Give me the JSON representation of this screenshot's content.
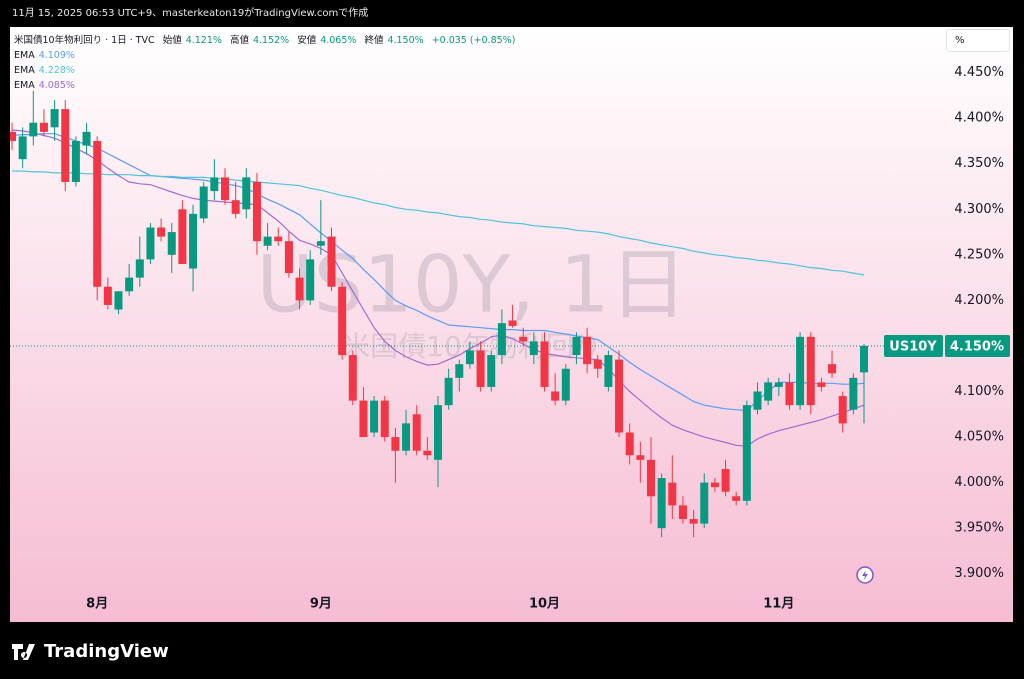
{
  "header": {
    "created": "11月 15, 2025 06:53 UTC+9、masterkeaton19がTradingView.comで作成"
  },
  "footer": {
    "logo": "TradingView"
  },
  "chart_data": {
    "type": "candlestick",
    "title": "米国債10年物利回り · 1日 · TVC",
    "ohlc_legend": [
      {
        "label": "始値",
        "value": "4.121%"
      },
      {
        "label": "高値",
        "value": "4.152%"
      },
      {
        "label": "安値",
        "value": "4.065%"
      },
      {
        "label": "終値",
        "value": "4.150%"
      }
    ],
    "change": "+0.035 (+0.85%)",
    "watermark": "US10Y, 1日",
    "watermark_subtitle": "米国債10年物利回り",
    "symbol": "US10Y",
    "last_price": {
      "value": 4.15,
      "label": "4.150%"
    },
    "axis_unit": "%",
    "up_color": "#089981",
    "down_color": "#f23645",
    "grid": false,
    "categories": [
      null,
      null,
      null,
      null,
      null,
      null,
      null,
      null,
      "8月",
      null,
      null,
      null,
      null,
      null,
      null,
      null,
      null,
      null,
      null,
      null,
      null,
      null,
      null,
      null,
      null,
      null,
      null,
      null,
      null,
      "9月",
      null,
      null,
      null,
      null,
      null,
      null,
      null,
      null,
      null,
      null,
      null,
      null,
      null,
      null,
      null,
      null,
      null,
      null,
      null,
      null,
      "10月",
      null,
      null,
      null,
      null,
      null,
      null,
      null,
      null,
      null,
      null,
      null,
      null,
      null,
      null,
      null,
      null,
      null,
      null,
      null,
      null,
      null,
      "11月",
      null,
      null,
      null,
      null,
      null,
      null,
      null,
      null
    ],
    "open": [
      4.385,
      4.355,
      4.38,
      4.395,
      4.39,
      4.41,
      4.33,
      4.37,
      4.375,
      4.215,
      4.19,
      4.21,
      4.225,
      4.245,
      4.28,
      4.25,
      4.3,
      4.235,
      4.29,
      4.32,
      4.335,
      4.31,
      4.3,
      4.33,
      4.26,
      4.27,
      4.265,
      4.225,
      4.2,
      4.26,
      4.27,
      4.215,
      4.14,
      4.09,
      4.055,
      4.09,
      4.05,
      4.035,
      4.075,
      4.035,
      4.025,
      4.085,
      4.115,
      4.13,
      4.145,
      4.105,
      4.14,
      4.178,
      4.16,
      4.14,
      4.155,
      4.1,
      4.09,
      4.14,
      4.16,
      4.135,
      4.105,
      4.135,
      4.055,
      4.03,
      4.025,
      3.95,
      4.0,
      3.975,
      3.96,
      3.955,
      4.0,
      4.015,
      3.985,
      3.98,
      4.08,
      4.09,
      4.105,
      4.11,
      4.085,
      4.16,
      4.11,
      4.13,
      4.095,
      4.08,
      4.121
    ],
    "high": [
      4.395,
      4.39,
      4.43,
      4.41,
      4.42,
      4.42,
      4.38,
      4.395,
      4.38,
      4.225,
      4.21,
      4.24,
      4.27,
      4.285,
      4.29,
      4.285,
      4.31,
      4.305,
      4.33,
      4.355,
      4.345,
      4.33,
      4.345,
      4.34,
      4.285,
      4.28,
      4.275,
      4.235,
      4.255,
      4.31,
      4.28,
      4.22,
      4.145,
      4.105,
      4.095,
      4.095,
      4.06,
      4.08,
      4.085,
      4.05,
      4.095,
      4.125,
      4.135,
      4.155,
      4.155,
      4.145,
      4.19,
      4.195,
      4.17,
      4.165,
      4.165,
      4.12,
      4.13,
      4.165,
      4.17,
      4.14,
      4.145,
      4.145,
      4.065,
      4.045,
      4.05,
      4.01,
      4.03,
      3.985,
      3.97,
      4.01,
      4.005,
      4.025,
      3.99,
      4.09,
      4.11,
      4.115,
      4.115,
      4.12,
      4.165,
      4.165,
      4.115,
      4.145,
      4.1,
      4.12,
      4.152
    ],
    "low": [
      4.365,
      4.345,
      4.37,
      4.38,
      4.375,
      4.32,
      4.325,
      4.36,
      4.2,
      4.19,
      4.185,
      4.205,
      4.215,
      4.24,
      4.265,
      4.23,
      4.24,
      4.21,
      4.285,
      4.31,
      4.305,
      4.29,
      4.29,
      4.25,
      4.255,
      4.26,
      4.225,
      4.19,
      4.195,
      4.25,
      4.21,
      4.135,
      4.085,
      4.05,
      4.05,
      4.045,
      4.0,
      4.03,
      4.03,
      4.025,
      3.995,
      4.08,
      4.1,
      4.125,
      4.1,
      4.1,
      4.13,
      4.17,
      4.15,
      4.13,
      4.1,
      4.085,
      4.085,
      4.13,
      4.12,
      4.115,
      4.1,
      4.05,
      4.02,
      4.0,
      3.955,
      3.94,
      3.96,
      3.955,
      3.94,
      3.95,
      3.99,
      3.985,
      3.975,
      3.975,
      4.075,
      4.085,
      4.095,
      4.08,
      4.08,
      4.075,
      4.1,
      4.115,
      4.055,
      4.075,
      4.065
    ],
    "close": [
      4.375,
      4.38,
      4.395,
      4.385,
      4.41,
      4.33,
      4.375,
      4.385,
      4.215,
      4.195,
      4.21,
      4.225,
      4.245,
      4.28,
      4.27,
      4.275,
      4.24,
      4.295,
      4.325,
      4.335,
      4.31,
      4.295,
      4.335,
      4.265,
      4.27,
      4.265,
      4.23,
      4.2,
      4.245,
      4.265,
      4.215,
      4.14,
      4.09,
      4.05,
      4.09,
      4.05,
      4.035,
      4.065,
      4.035,
      4.03,
      4.085,
      4.115,
      4.13,
      4.145,
      4.105,
      4.14,
      4.175,
      4.172,
      4.155,
      4.155,
      4.105,
      4.09,
      4.125,
      4.16,
      4.13,
      4.125,
      4.14,
      4.055,
      4.03,
      4.025,
      3.985,
      4.005,
      3.975,
      3.96,
      3.955,
      4.0,
      3.995,
      3.99,
      3.98,
      4.085,
      4.1,
      4.11,
      4.11,
      4.085,
      4.16,
      4.085,
      4.105,
      4.12,
      4.065,
      4.115,
      4.15
    ],
    "series": [
      {
        "name": "EMA",
        "color": "#5b9cf6",
        "value_label": "4.109%",
        "values": [
          4.381,
          4.382,
          4.382,
          4.383,
          4.383,
          4.379,
          4.375,
          4.371,
          4.367,
          4.361,
          4.355,
          4.349,
          4.343,
          4.337,
          4.336,
          4.335,
          4.334,
          4.333,
          4.332,
          4.33,
          4.328,
          4.326,
          4.323,
          4.317,
          4.311,
          4.306,
          4.3,
          4.294,
          4.284,
          4.274,
          4.265,
          4.255,
          4.246,
          4.234,
          4.223,
          4.211,
          4.2,
          4.194,
          4.189,
          4.183,
          4.178,
          4.173,
          4.172,
          4.171,
          4.17,
          4.169,
          4.168,
          4.168,
          4.167,
          4.167,
          4.167,
          4.165,
          4.163,
          4.161,
          4.159,
          4.157,
          4.149,
          4.141,
          4.132,
          4.124,
          4.117,
          4.11,
          4.103,
          4.096,
          4.089,
          4.085,
          4.083,
          4.081,
          4.08,
          4.079,
          4.09,
          4.1,
          4.11,
          4.11,
          4.11,
          4.109,
          4.109,
          4.109,
          4.108,
          4.108,
          4.109
        ]
      },
      {
        "name": "EMA",
        "color": "#4fc3dc",
        "value_label": "4.228%",
        "values": [
          4.342,
          4.342,
          4.341,
          4.341,
          4.34,
          4.34,
          4.34,
          4.339,
          4.339,
          4.338,
          4.338,
          4.338,
          4.337,
          4.337,
          4.336,
          4.336,
          4.335,
          4.335,
          4.335,
          4.334,
          4.333,
          4.332,
          4.331,
          4.33,
          4.329,
          4.328,
          4.327,
          4.326,
          4.323,
          4.321,
          4.318,
          4.315,
          4.313,
          4.31,
          4.307,
          4.305,
          4.302,
          4.3,
          4.299,
          4.297,
          4.296,
          4.294,
          4.292,
          4.291,
          4.289,
          4.288,
          4.286,
          4.285,
          4.284,
          4.282,
          4.281,
          4.28,
          4.279,
          4.277,
          4.276,
          4.275,
          4.273,
          4.27,
          4.268,
          4.266,
          4.263,
          4.261,
          4.259,
          4.257,
          4.254,
          4.252,
          4.25,
          4.249,
          4.247,
          4.246,
          4.244,
          4.243,
          4.241,
          4.24,
          4.238,
          4.236,
          4.235,
          4.233,
          4.232,
          4.23,
          4.228
        ]
      },
      {
        "name": "EMA",
        "color": "#a36ad0",
        "value_label": "4.085%",
        "values": [
          4.387,
          4.386,
          4.384,
          4.381,
          4.378,
          4.373,
          4.367,
          4.361,
          4.354,
          4.345,
          4.337,
          4.33,
          4.328,
          4.327,
          4.323,
          4.319,
          4.315,
          4.312,
          4.31,
          4.309,
          4.308,
          4.307,
          4.306,
          4.305,
          4.296,
          4.287,
          4.276,
          4.266,
          4.262,
          4.257,
          4.25,
          4.23,
          4.21,
          4.19,
          4.17,
          4.155,
          4.145,
          4.138,
          4.133,
          4.129,
          4.13,
          4.135,
          4.14,
          4.147,
          4.153,
          4.16,
          4.162,
          4.158,
          4.152,
          4.146,
          4.142,
          4.14,
          4.138,
          4.137,
          4.136,
          4.135,
          4.125,
          4.112,
          4.1,
          4.09,
          4.08,
          4.071,
          4.063,
          4.058,
          4.054,
          4.05,
          4.047,
          4.044,
          4.041,
          4.04,
          4.048,
          4.053,
          4.057,
          4.06,
          4.063,
          4.066,
          4.069,
          4.073,
          4.077,
          4.081,
          4.085
        ]
      }
    ],
    "ylim": [
      3.847,
      4.499
    ],
    "yticks": [
      {
        "value": 3.9,
        "label": "3.900%"
      },
      {
        "value": 3.95,
        "label": "3.950%"
      },
      {
        "value": 4.0,
        "label": "4.000%"
      },
      {
        "value": 4.05,
        "label": "4.050%"
      },
      {
        "value": 4.1,
        "label": "4.100%"
      },
      {
        "value": 4.15,
        "label": "4.150%"
      },
      {
        "value": 4.2,
        "label": "4.200%"
      },
      {
        "value": 4.25,
        "label": "4.250%"
      },
      {
        "value": 4.3,
        "label": "4.300%"
      },
      {
        "value": 4.35,
        "label": "4.350%"
      },
      {
        "value": 4.4,
        "label": "4.400%"
      },
      {
        "value": 4.45,
        "label": "4.450%"
      }
    ]
  }
}
